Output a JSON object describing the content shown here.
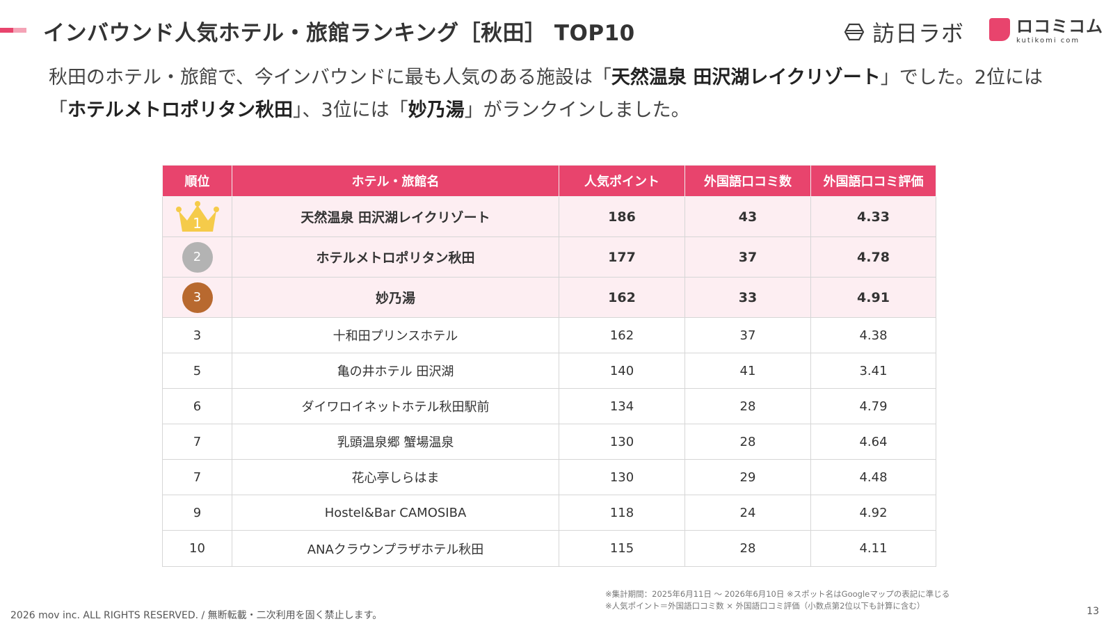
{
  "colors": {
    "accent": "#e8446d",
    "accent_light": "#f4a3b6",
    "header_bg": "#e8446d",
    "top_row_bg": "#fdeef2",
    "gold": "#f5cb4a",
    "silver": "#b3b3b3",
    "bronze": "#b8692f"
  },
  "header": {
    "title": "インバウンド人気ホテル・旅館ランキング［秋田］ TOP10"
  },
  "logos": {
    "houjin_labo": "訪日ラボ",
    "kutikomi": "ロコミコム",
    "kutikomi_sub": "kutikomi com"
  },
  "lead": {
    "p1": "秋田のホテル・旅館で、今インバウンドに最も人気のある施設は「",
    "b1": "天然温泉 田沢湖レイクリゾート",
    "p2": "」でした。2位には「",
    "b2": "ホテルメトロポリタン秋田",
    "p3": "」、3位には「",
    "b3": "妙乃湯",
    "p4": "」がランクインしました。"
  },
  "table": {
    "headers": [
      "順位",
      "ホテル・旅館名",
      "人気ポイント",
      "外国語口コミ数",
      "外国語口コミ評価"
    ],
    "rows": [
      {
        "rank": "1",
        "name": "天然温泉 田沢湖レイクリゾート",
        "points": "186",
        "reviews": "43",
        "rating": "4.33",
        "medal": "gold-crown"
      },
      {
        "rank": "2",
        "name": "ホテルメトロポリタン秋田",
        "points": "177",
        "reviews": "37",
        "rating": "4.78",
        "medal": "silver"
      },
      {
        "rank": "3",
        "name": "妙乃湯",
        "points": "162",
        "reviews": "33",
        "rating": "4.91",
        "medal": "bronze"
      },
      {
        "rank": "3",
        "name": "十和田プリンスホテル",
        "points": "162",
        "reviews": "37",
        "rating": "4.38"
      },
      {
        "rank": "5",
        "name": "亀の井ホテル 田沢湖",
        "points": "140",
        "reviews": "41",
        "rating": "3.41"
      },
      {
        "rank": "6",
        "name": "ダイワロイネットホテル秋田駅前",
        "points": "134",
        "reviews": "28",
        "rating": "4.79"
      },
      {
        "rank": "7",
        "name": "乳頭温泉郷 蟹場温泉",
        "points": "130",
        "reviews": "28",
        "rating": "4.64"
      },
      {
        "rank": "7",
        "name": "花心亭しらはま",
        "points": "130",
        "reviews": "29",
        "rating": "4.48"
      },
      {
        "rank": "9",
        "name": "Hostel&Bar CAMOSIBA",
        "points": "118",
        "reviews": "24",
        "rating": "4.92"
      },
      {
        "rank": "10",
        "name": "ANAクラウンプラザホテル秋田",
        "points": "115",
        "reviews": "28",
        "rating": "4.11"
      }
    ]
  },
  "footer": {
    "note1": "※集計期間：2025年6月11日 〜 2026年6月10日 ※スポット名はGoogleマップの表記に準じる",
    "note2": "※人気ポイント＝外国語口コミ数 × 外国語口コミ評価（小数点第2位以下も計算に含む）",
    "copyright": "2026 mov inc. ALL RIGHTS RESERVED. / 無断転載・二次利用を固く禁止します。",
    "page": "13"
  }
}
